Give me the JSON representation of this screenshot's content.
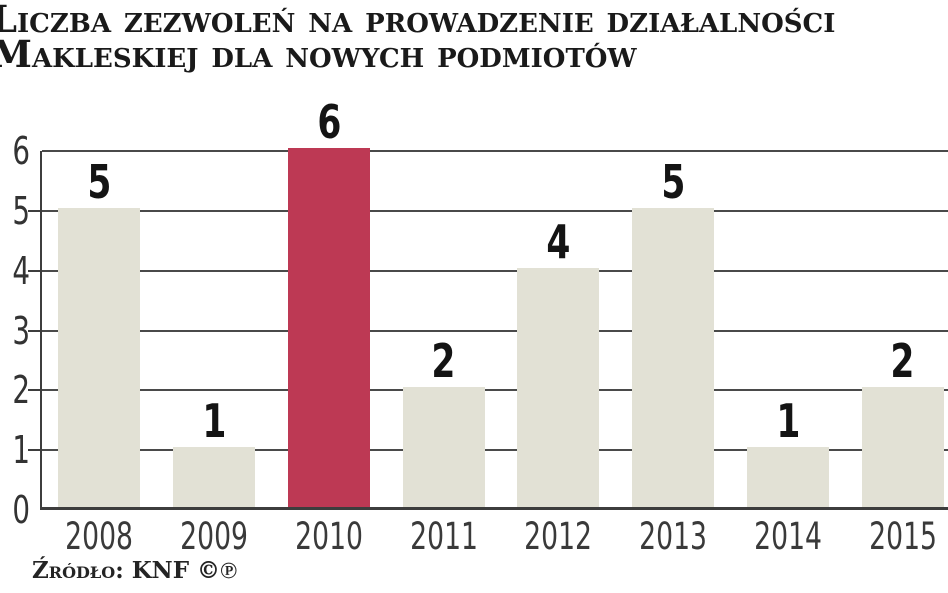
{
  "title": {
    "line1": "Liczba zezwoleń na prowadzenie działalności",
    "line2": "Makleskiej dla nowych podmiotów"
  },
  "source": "Źródło: KNF ©℗",
  "colors": {
    "bar_default": "#e2e1d5",
    "bar_highlight": "#bd3954",
    "gridline": "#4a4a4a",
    "axis_line": "#3d3d3d",
    "axis_text": "#333333",
    "value_text": "#141414",
    "title_text": "#1a1a1a",
    "background": "#ffffff"
  },
  "chart_data": {
    "type": "bar",
    "title": "Liczba zezwoleń na prowadzenie działalności makleskiej dla nowych podmiotów",
    "categories": [
      "2008",
      "2009",
      "2010",
      "2011",
      "2012",
      "2013",
      "2014",
      "2015"
    ],
    "values": [
      5,
      1,
      6,
      2,
      4,
      5,
      1,
      2
    ],
    "highlight_index": 2,
    "highlight_category": "2010",
    "xlabel": "",
    "ylabel": "",
    "ylim": [
      0,
      6
    ],
    "yticks": [
      0,
      1,
      2,
      3,
      4,
      5,
      6
    ],
    "grid": true,
    "legend": false,
    "value_labels": true,
    "source": "Źródło: KNF ©℗"
  }
}
